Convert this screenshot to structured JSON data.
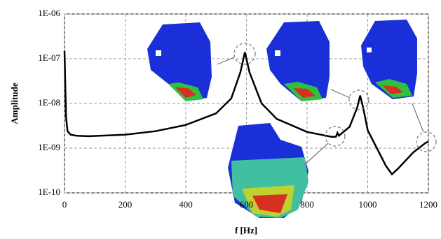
{
  "chart_data": {
    "type": "line",
    "x_label": "f [Hz]",
    "y_label": "Amplitude",
    "x": [
      0,
      5,
      10,
      20,
      40,
      80,
      200,
      300,
      400,
      500,
      550,
      580,
      595,
      610,
      650,
      700,
      800,
      880,
      895,
      900,
      905,
      940,
      965,
      975,
      985,
      1000,
      1030,
      1060,
      1080,
      1100,
      1150,
      1190,
      1200
    ],
    "series": [
      {
        "color": "#000000",
        "values": [
          1.5e-07,
          5e-09,
          2.4e-09,
          2e-09,
          1.9e-09,
          1.85e-09,
          2e-09,
          2.4e-09,
          3.3e-09,
          6e-09,
          1.3e-08,
          5e-08,
          1.4e-07,
          5e-08,
          1e-08,
          4.5e-09,
          2.3e-09,
          1.8e-09,
          1.8e-09,
          2.2e-09,
          1.9e-09,
          3e-09,
          8e-09,
          1.5e-08,
          8e-09,
          2.5e-09,
          1e-09,
          4e-10,
          2.6e-10,
          3.5e-10,
          8e-10,
          1.3e-09,
          1.4e-09
        ]
      }
    ],
    "xlim": [
      0,
      1200
    ],
    "xticks": [
      0,
      200,
      400,
      600,
      800,
      1000,
      1200
    ],
    "ylim": [
      1e-10,
      1e-06
    ],
    "log_y": true,
    "yticks": [
      {
        "value": 1e-10,
        "label": "1E-10"
      },
      {
        "value": 1e-09,
        "label": "1E-09"
      },
      {
        "value": 1e-08,
        "label": "1E-08"
      },
      {
        "value": 1e-07,
        "label": "1E-07"
      },
      {
        "value": 1e-06,
        "label": "1E-06"
      }
    ],
    "grid": true
  }
}
